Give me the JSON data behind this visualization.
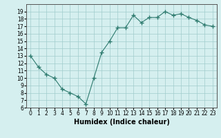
{
  "x": [
    0,
    1,
    2,
    3,
    4,
    5,
    6,
    7,
    8,
    9,
    10,
    11,
    12,
    13,
    14,
    15,
    16,
    17,
    18,
    19,
    20,
    21,
    22,
    23
  ],
  "y": [
    13,
    11.5,
    10.5,
    10,
    8.5,
    8,
    7.5,
    6.5,
    10,
    13.5,
    15,
    16.8,
    16.8,
    18.5,
    17.5,
    18.2,
    18.2,
    19.0,
    18.5,
    18.7,
    18.2,
    17.8,
    17.2,
    17.0
  ],
  "line_color": "#2d7a6e",
  "marker": "+",
  "marker_color": "#2d7a6e",
  "bg_color": "#d5efef",
  "grid_color": "#a0cccc",
  "xlabel": "Humidex (Indice chaleur)",
  "ylim": [
    6,
    20
  ],
  "xlim": [
    -0.5,
    23.5
  ],
  "yticks": [
    6,
    7,
    8,
    9,
    10,
    11,
    12,
    13,
    14,
    15,
    16,
    17,
    18,
    19
  ],
  "xticks": [
    0,
    1,
    2,
    3,
    4,
    5,
    6,
    7,
    8,
    9,
    10,
    11,
    12,
    13,
    14,
    15,
    16,
    17,
    18,
    19,
    20,
    21,
    22,
    23
  ]
}
